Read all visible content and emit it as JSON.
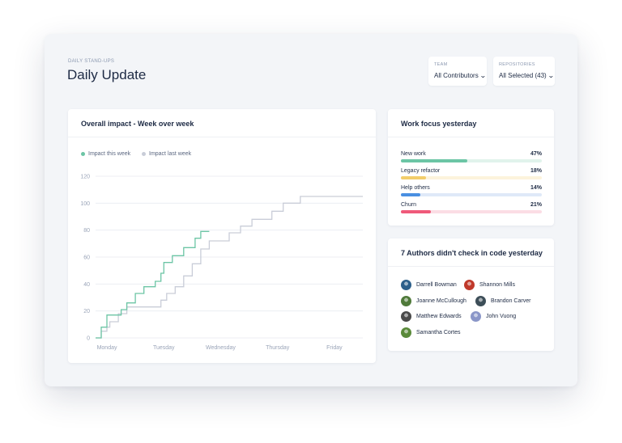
{
  "header": {
    "eyebrow": "DAILY STAND-UPS",
    "title": "Daily Update"
  },
  "filters": [
    {
      "label": "TEAM",
      "value": "All Contributors"
    },
    {
      "label": "REPOSITORIES",
      "value": "All Selected (43)"
    }
  ],
  "impact_card": {
    "title": "Overall impact - Week over week",
    "legend": [
      {
        "name": "Impact this week",
        "color": "#6cc5a5"
      },
      {
        "name": "Impact last week",
        "color": "#c9cdd8"
      }
    ]
  },
  "chart_data": {
    "type": "line",
    "step": true,
    "title": "Overall impact - Week over week",
    "xlabel": "",
    "ylabel": "",
    "x_ticks": [
      "Monday",
      "Tuesday",
      "Wednesday",
      "Thursday",
      "Friday"
    ],
    "xlim": [
      -0.2,
      4.5
    ],
    "ylim": [
      0,
      120
    ],
    "y_ticks": [
      0,
      20,
      40,
      60,
      80,
      100,
      120
    ],
    "grid": true,
    "legend_position": "top-left",
    "series": [
      {
        "name": "Impact this week",
        "color": "#6cc5a5",
        "x": [
          -0.2,
          -0.1,
          -0.1,
          0.0,
          0.0,
          0.25,
          0.25,
          0.35,
          0.35,
          0.5,
          0.5,
          0.65,
          0.65,
          0.85,
          0.85,
          0.95,
          0.95,
          1.0,
          1.0,
          1.15,
          1.15,
          1.35,
          1.35,
          1.55,
          1.55,
          1.65,
          1.65,
          1.8
        ],
        "y": [
          0,
          0,
          8,
          8,
          17,
          17,
          21,
          21,
          26,
          26,
          33,
          33,
          38,
          38,
          42,
          42,
          48,
          48,
          56,
          56,
          61,
          61,
          67,
          67,
          74,
          74,
          79,
          79
        ]
      },
      {
        "name": "Impact last week",
        "color": "#c9cdd8",
        "x": [
          -0.2,
          -0.1,
          -0.1,
          0.0,
          0.0,
          0.05,
          0.05,
          0.2,
          0.2,
          0.35,
          0.35,
          0.5,
          0.5,
          0.7,
          0.7,
          0.95,
          0.95,
          1.05,
          1.05,
          1.2,
          1.2,
          1.35,
          1.35,
          1.5,
          1.5,
          1.65,
          1.65,
          1.8,
          1.8,
          2.15,
          2.15,
          2.35,
          2.35,
          2.55,
          2.55,
          2.9,
          2.9,
          3.1,
          3.1,
          3.25,
          3.25,
          3.4,
          3.4,
          3.7,
          3.7,
          4.5
        ],
        "y": [
          0,
          0,
          5,
          5,
          8,
          8,
          12,
          12,
          18,
          18,
          23,
          23,
          23,
          23,
          23,
          23,
          28,
          28,
          33,
          33,
          38,
          38,
          46,
          46,
          55,
          55,
          66,
          66,
          72,
          72,
          78,
          78,
          83,
          83,
          88,
          88,
          94,
          94,
          100,
          100,
          100,
          100,
          105,
          105,
          105,
          105
        ]
      }
    ]
  },
  "focus_card": {
    "title": "Work focus yesterday",
    "items": [
      {
        "label": "New work",
        "value": "47%",
        "fraction": 0.47,
        "color": "#6cc5a5",
        "track": "#e1f3ec"
      },
      {
        "label": "Legacy refactor",
        "value": "18%",
        "fraction": 0.18,
        "color": "#f2cd6b",
        "track": "#fcf3dc"
      },
      {
        "label": "Help others",
        "value": "14%",
        "fraction": 0.14,
        "color": "#4a90e2",
        "track": "#dfe9f8"
      },
      {
        "label": "Churn",
        "value": "21%",
        "fraction": 0.21,
        "color": "#ef5a7a",
        "track": "#fbdde5"
      }
    ]
  },
  "authors_card": {
    "title": "7 Authors didn't check in code yesterday",
    "authors": [
      {
        "name": "Darrell Bowman",
        "color": "#2c5f8a"
      },
      {
        "name": "Shannon Mills",
        "color": "#c0392b"
      },
      {
        "name": "Joanne McCullough",
        "color": "#4f7a3a"
      },
      {
        "name": "Brandon Carver",
        "color": "#3d4e58"
      },
      {
        "name": "Matthew Edwards",
        "color": "#4a4a4a"
      },
      {
        "name": "John Vuong",
        "color": "#8a96c8"
      },
      {
        "name": "Samantha Cortes",
        "color": "#5a8a3a"
      }
    ]
  }
}
